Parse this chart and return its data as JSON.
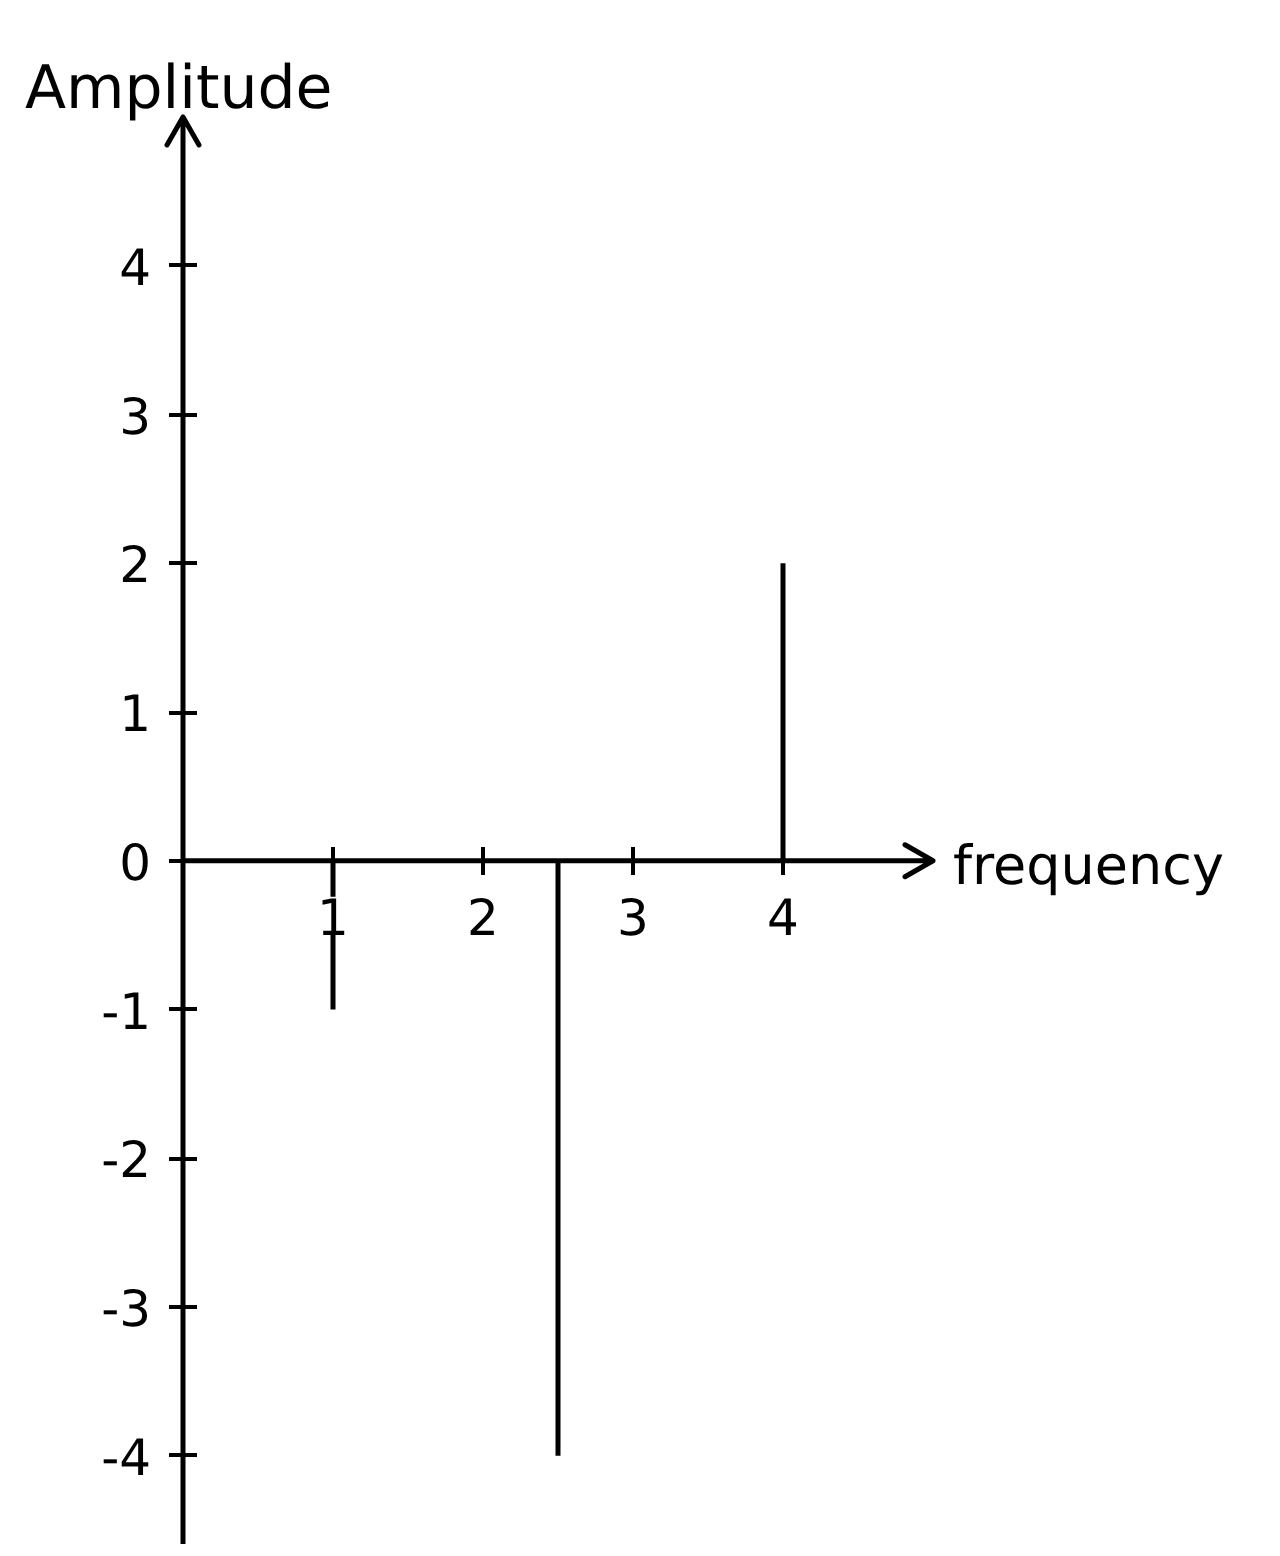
{
  "chart_data": {
    "type": "bar",
    "xlabel": "frequency",
    "ylabel": "Amplitude",
    "x": [
      1,
      2.5,
      4
    ],
    "values": [
      -1,
      -4,
      2
    ],
    "color": "#000000",
    "xlim": [
      0,
      5
    ],
    "ylim": [
      -4.6,
      5
    ],
    "xticks": [
      1,
      2,
      3,
      4
    ],
    "yticks": [
      -4,
      -3,
      -2,
      -1,
      0,
      1,
      2,
      3,
      4
    ]
  }
}
